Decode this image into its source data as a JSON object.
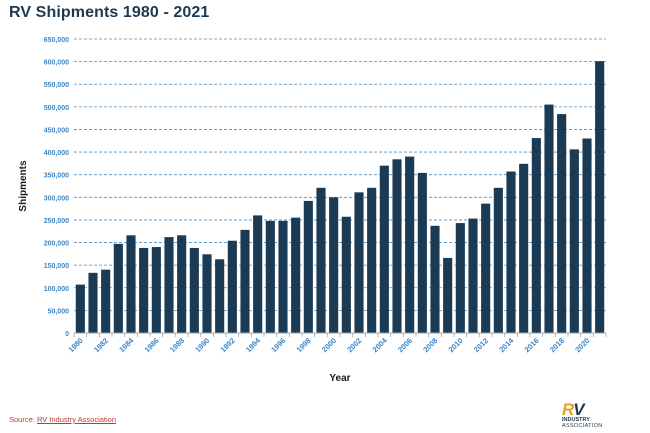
{
  "chart_data": {
    "type": "bar",
    "title": "RV Shipments 1980 - 2021",
    "xlabel": "Year",
    "ylabel": "Shipments",
    "ylim": [
      0,
      650000
    ],
    "yticks": [
      "0",
      "50,000",
      "100,000",
      "150,000",
      "200,000",
      "250,000",
      "300,000",
      "350,000",
      "400,000",
      "450,000",
      "500,000",
      "550,000",
      "600,000",
      "650,000"
    ],
    "grid": true,
    "categories": [
      "1980",
      "1981",
      "1982",
      "1983",
      "1984",
      "1985",
      "1986",
      "1987",
      "1988",
      "1989",
      "1990",
      "1991",
      "1992",
      "1993",
      "1994",
      "1995",
      "1996",
      "1997",
      "1998",
      "1999",
      "2000",
      "2001",
      "2002",
      "2003",
      "2004",
      "2005",
      "2006",
      "2007",
      "2008",
      "2009",
      "2010",
      "2011",
      "2012",
      "2013",
      "2014",
      "2015",
      "2016",
      "2017",
      "2018",
      "2019",
      "2020",
      "2021"
    ],
    "xtick_labels": [
      "1980",
      "1982",
      "1984",
      "1986",
      "1988",
      "1990",
      "1992",
      "1994",
      "1996",
      "1998",
      "2000",
      "2002",
      "2004",
      "2006",
      "2008",
      "2010",
      "2012",
      "2014",
      "2016",
      "2018",
      "2020"
    ],
    "values": [
      107000,
      133000,
      140000,
      197000,
      216000,
      188000,
      190000,
      212000,
      216000,
      188000,
      174000,
      163000,
      204000,
      228000,
      260000,
      248000,
      248000,
      255000,
      292000,
      321000,
      300000,
      257000,
      311000,
      321000,
      370000,
      384000,
      390000,
      354000,
      237000,
      166000,
      243000,
      253000,
      286000,
      321000,
      357000,
      374000,
      431000,
      505000,
      484000,
      406000,
      430000,
      601000
    ],
    "colors": {
      "bar": "#1b3a53",
      "grid": "#4a90c8",
      "tick": "#3d86c6",
      "axis": "#9aa8b4"
    }
  },
  "source": {
    "prefix": "Source: ",
    "link": "RV Industry Association"
  },
  "logo": {
    "mark_r": "R",
    "mark_v": "V",
    "line1": "INDUSTRY",
    "line2": "ASSOCIATION"
  }
}
